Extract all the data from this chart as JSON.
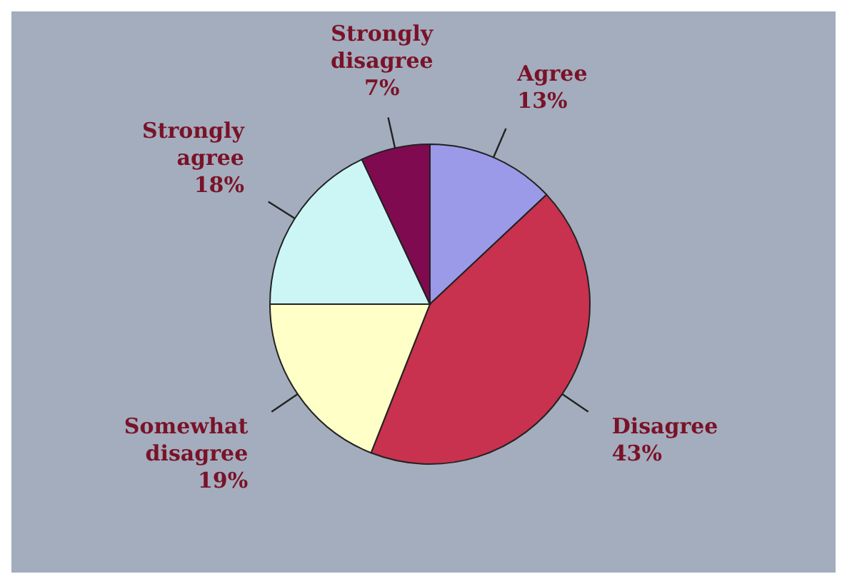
{
  "chart_data": {
    "type": "pie",
    "categories": [
      "Agree",
      "Disagree",
      "Somewhat disagree",
      "Strongly agree",
      "Strongly disagree"
    ],
    "values": [
      13,
      43,
      19,
      18,
      7
    ],
    "value_labels": [
      "13%",
      "43%",
      "19%",
      "18%",
      "7%"
    ],
    "colors": [
      "#9a9ae8",
      "#c8324e",
      "#ffffc8",
      "#ccf6f6",
      "#800a50"
    ]
  }
}
